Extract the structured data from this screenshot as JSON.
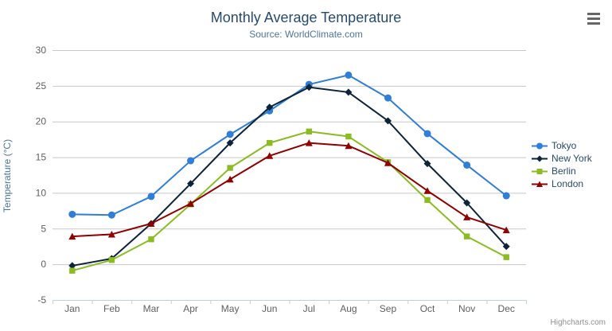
{
  "chart_data": {
    "type": "line",
    "title": "Monthly Average Temperature",
    "subtitle": "Source: WorldClimate.com",
    "xlabel": "",
    "ylabel": "Temperature (°C)",
    "categories": [
      "Jan",
      "Feb",
      "Mar",
      "Apr",
      "May",
      "Jun",
      "Jul",
      "Aug",
      "Sep",
      "Oct",
      "Nov",
      "Dec"
    ],
    "ylim": [
      -5,
      30
    ],
    "yticks": [
      -5,
      0,
      5,
      10,
      15,
      20,
      25,
      30
    ],
    "grid": true,
    "legend_position": "right",
    "series": [
      {
        "name": "Tokyo",
        "color": "#2f7ed8",
        "marker": "circle",
        "values": [
          7.0,
          6.9,
          9.5,
          14.5,
          18.2,
          21.5,
          25.2,
          26.5,
          23.3,
          18.3,
          13.9,
          9.6
        ]
      },
      {
        "name": "New York",
        "color": "#0d233a",
        "marker": "diamond",
        "values": [
          -0.2,
          0.8,
          5.7,
          11.3,
          17.0,
          22.0,
          24.8,
          24.1,
          20.1,
          14.1,
          8.6,
          2.5
        ]
      },
      {
        "name": "Berlin",
        "color": "#8bbc21",
        "marker": "square",
        "values": [
          -0.9,
          0.6,
          3.5,
          8.4,
          13.5,
          17.0,
          18.6,
          17.9,
          14.3,
          9.0,
          3.9,
          1.0
        ]
      },
      {
        "name": "London",
        "color": "#910000",
        "marker": "triangle",
        "values": [
          3.9,
          4.2,
          5.7,
          8.5,
          11.9,
          15.2,
          17.0,
          16.6,
          14.2,
          10.3,
          6.6,
          4.8
        ]
      }
    ]
  },
  "credits_label": "Highcharts.com",
  "context_menu_icon": "hamburger-icon",
  "style_colors": {
    "grid": "#c8c8c8",
    "axis_line": "#c0d0e0",
    "axis_label": "#606060",
    "title": "#274b6d",
    "subtitle": "#4d759e"
  }
}
